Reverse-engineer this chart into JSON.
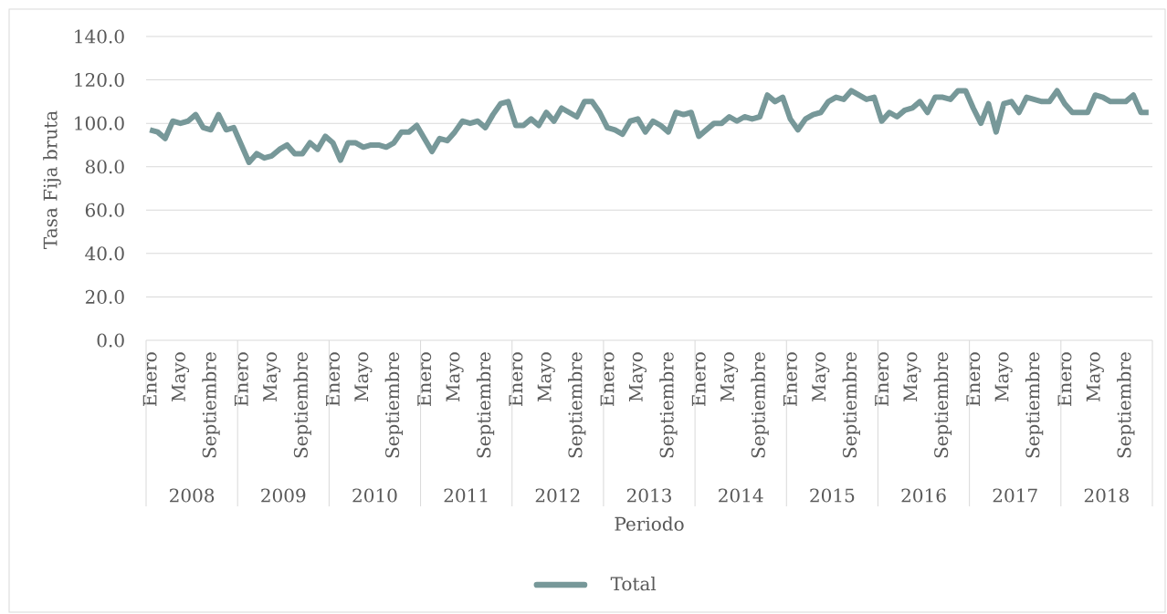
{
  "chart_data": {
    "type": "line",
    "xlabel": "Periodo",
    "ylabel": "Tasa Fija bruta",
    "categories": [
      "Enero",
      null,
      null,
      null,
      "Mayo",
      null,
      null,
      null,
      "Septiembre",
      null,
      null,
      null,
      "Enero",
      null,
      null,
      null,
      "Mayo",
      null,
      null,
      null,
      "Septiembre",
      null,
      null,
      null,
      "Enero",
      null,
      null,
      null,
      "Mayo",
      null,
      null,
      null,
      "Septiembre",
      null,
      null,
      null,
      "Enero",
      null,
      null,
      null,
      "Mayo",
      null,
      null,
      null,
      "Septiembre",
      null,
      null,
      null,
      "Enero",
      null,
      null,
      null,
      "Mayo",
      null,
      null,
      null,
      "Septiembre",
      null,
      null,
      null,
      "Enero",
      null,
      null,
      null,
      "Mayo",
      null,
      null,
      null,
      "Septiembre",
      null,
      null,
      null,
      "Enero",
      null,
      null,
      null,
      "Mayo",
      null,
      null,
      null,
      "Septiembre",
      null,
      null,
      null,
      "Enero",
      null,
      null,
      null,
      "Mayo",
      null,
      null,
      null,
      "Septiembre",
      null,
      null,
      null,
      "Enero",
      null,
      null,
      null,
      "Mayo",
      null,
      null,
      null,
      "Septiembre",
      null,
      null,
      null,
      "Enero",
      null,
      null,
      null,
      "Mayo",
      null,
      null,
      null,
      "Septiembre",
      null,
      null,
      null,
      "Enero",
      null,
      null,
      null,
      "Mayo",
      null,
      null,
      null,
      "Septiembre",
      null,
      null,
      null
    ],
    "series": [
      {
        "name": "Total",
        "color": "#779899",
        "values": [
          97,
          96,
          93,
          101,
          100,
          101,
          104,
          98,
          97,
          104,
          97,
          98,
          90,
          82,
          86,
          84,
          85,
          88,
          90,
          86,
          86,
          91,
          88,
          94,
          91,
          83,
          91,
          91,
          89,
          90,
          90,
          89,
          91,
          96,
          96,
          99,
          93,
          87,
          93,
          92,
          96,
          101,
          100,
          101,
          98,
          104,
          109,
          110,
          99,
          99,
          102,
          99,
          105,
          101,
          107,
          105,
          103,
          110,
          110,
          105,
          98,
          97,
          95,
          101,
          102,
          96,
          101,
          99,
          96,
          105,
          104,
          105,
          94,
          97,
          100,
          100,
          103,
          101,
          103,
          102,
          103,
          113,
          110,
          112,
          102,
          97,
          102,
          104,
          105,
          110,
          112,
          111,
          115,
          113,
          111,
          112,
          101,
          105,
          103,
          106,
          107,
          110,
          105,
          112,
          112,
          111,
          115,
          115,
          107,
          100,
          109,
          96,
          109,
          110,
          105,
          112,
          111,
          110,
          110,
          115,
          109,
          105,
          105,
          105,
          113,
          112,
          110,
          110,
          110,
          113,
          105,
          105
        ]
      }
    ],
    "ylim": [
      0,
      140
    ],
    "yticks": [
      {
        "value": 0,
        "label": "0.0"
      },
      {
        "value": 20,
        "label": "20.0"
      },
      {
        "value": 40,
        "label": "40.0"
      },
      {
        "value": 60,
        "label": "60.0"
      },
      {
        "value": 80,
        "label": "80.0"
      },
      {
        "value": 100,
        "label": "100.0"
      },
      {
        "value": 120,
        "label": "120.0"
      },
      {
        "value": 140,
        "label": "140.0"
      }
    ],
    "grid": "y",
    "legend": "bottom",
    "annotations": [
      "2008",
      "2009",
      "2010",
      "2011",
      "2012",
      "2013",
      "2014",
      "2015",
      "2016",
      "2017",
      "2018"
    ]
  }
}
